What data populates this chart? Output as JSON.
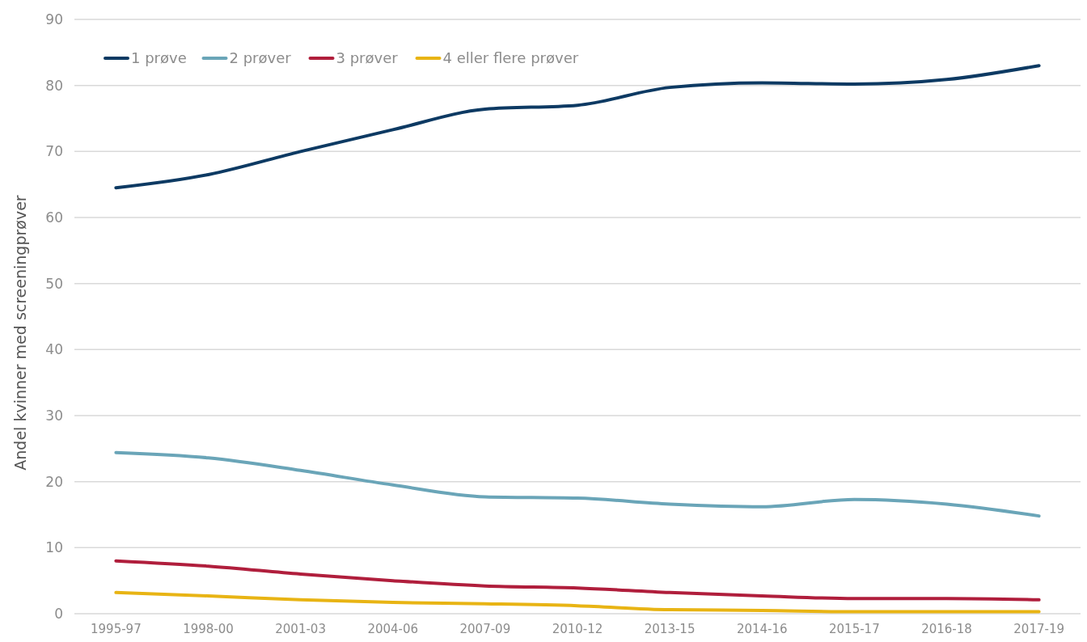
{
  "chart_data": {
    "type": "line",
    "ylabel": "Andel kvinner med screeningprøver",
    "categories": [
      "1995-97",
      "1998-00",
      "2001-03",
      "2004-06",
      "2007-09",
      "2010-12",
      "2013-15",
      "2014-16",
      "2015-17",
      "2016-18",
      "2017-19"
    ],
    "series": [
      {
        "name": "1 prøve",
        "color": "#0d3a63",
        "values": [
          64.5,
          66.5,
          70.0,
          73.3,
          76.4,
          77.0,
          79.7,
          80.4,
          80.2,
          80.9,
          83.0
        ]
      },
      {
        "name": "2 prøver",
        "color": "#6aa5b8",
        "values": [
          24.4,
          23.6,
          21.7,
          19.5,
          17.7,
          17.5,
          16.6,
          16.2,
          17.3,
          16.6,
          14.8
        ]
      },
      {
        "name": "3 prøver",
        "color": "#b01e3c",
        "values": [
          8.0,
          7.2,
          6.0,
          5.0,
          4.2,
          3.9,
          3.2,
          2.7,
          2.3,
          2.3,
          2.1
        ]
      },
      {
        "name": "4 eller flere prøver",
        "color": "#e8b414",
        "values": [
          3.2,
          2.7,
          2.1,
          1.7,
          1.5,
          1.2,
          0.6,
          0.5,
          0.3,
          0.3,
          0.3
        ]
      }
    ],
    "ylim": [
      0,
      90
    ],
    "yticks": [
      0,
      10,
      20,
      30,
      40,
      50,
      60,
      70,
      80,
      90
    ],
    "grid": "y",
    "legend": "top left",
    "marker": "none",
    "line_style": "solid"
  }
}
